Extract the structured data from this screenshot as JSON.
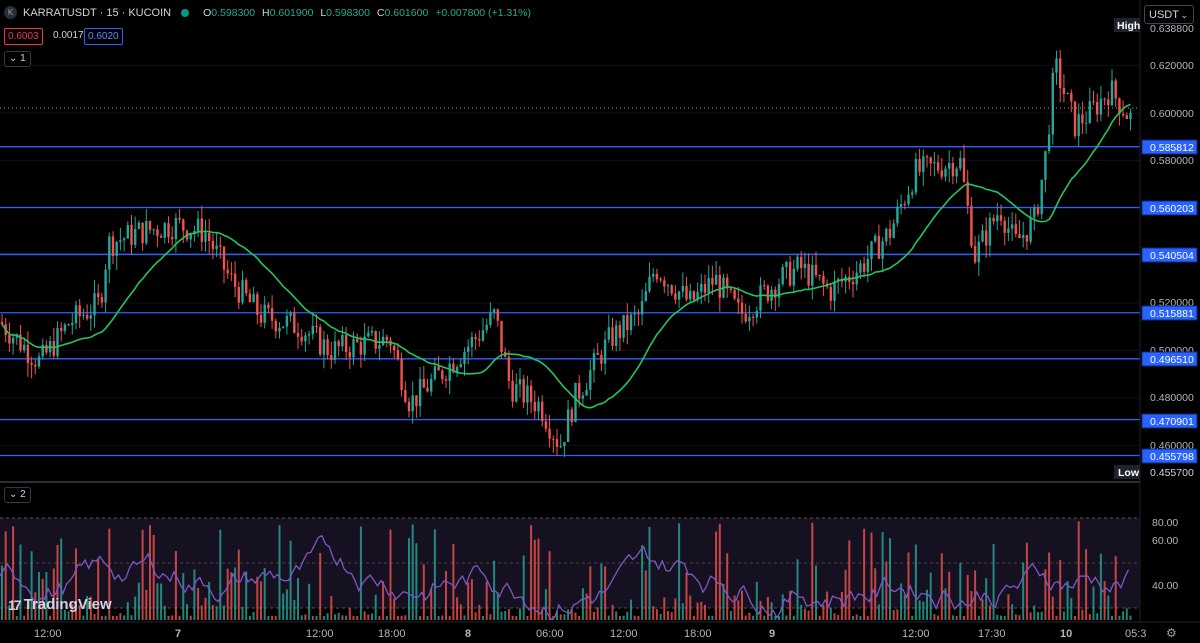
{
  "header": {
    "symbol_icon": "K",
    "symbol_line": "KARRATUSDT · 15 · KUCOIN",
    "status": "market-open-dot",
    "o_label": "O",
    "o_value": "0.598300",
    "h_label": "H",
    "h_value": "0.601900",
    "l_label": "L",
    "l_value": "0.598300",
    "c_label": "C",
    "c_value": "0.601600",
    "change": "+0.007800 (+1.31%)",
    "bid": "0.6003",
    "spread": "0.0017",
    "ask": "0.6020",
    "pane1_label": "1",
    "pane2_label": "2"
  },
  "currency_button": "USDT",
  "price_axis": {
    "ticks": [
      "0.620000",
      "0.600000",
      "0.580000",
      "0.520000",
      "0.500000",
      "0.480000",
      "0.460000"
    ],
    "levels": [
      "0.585812",
      "0.560203",
      "0.540504",
      "0.515881",
      "0.496510",
      "0.470901",
      "0.455798"
    ],
    "high_label": "High",
    "high_value": "0.638800",
    "low_label": "Low",
    "low_value": "0.455700"
  },
  "indicator_axis": {
    "ticks": [
      "80.00",
      "60.00",
      "40.00"
    ]
  },
  "time_axis": {
    "labels": [
      "12:00",
      "7",
      "12:00",
      "18:00",
      "8",
      "06:00",
      "12:00",
      "18:00",
      "9",
      "12:00",
      "17:30",
      "10",
      "05:3"
    ]
  },
  "brand": "TradingView",
  "colors": {
    "up": "#26a69a",
    "down": "#ef5350",
    "ma": "#22c55e",
    "rsi": "#7e57c2",
    "level_line": "#2962ff"
  },
  "icons": {
    "settings": "gear-icon",
    "currency_dropdown": "chevron-down-icon"
  }
}
